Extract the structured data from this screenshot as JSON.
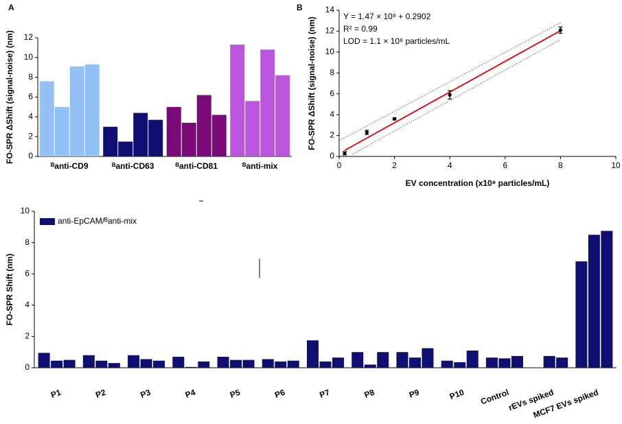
{
  "chart_data": [
    {
      "type": "bar",
      "panel_label": "A",
      "y_label": "FO-SPR ΔShift (signal-noise) (nm)",
      "categories": [
        "ᴮanti-CD9",
        "ᴮanti-CD63",
        "ᴮanti-CD81",
        "ᴮanti-mix"
      ],
      "values": [
        [
          7.6,
          5.0,
          9.1,
          9.3
        ],
        [
          3.0,
          1.5,
          4.4,
          3.7
        ],
        [
          5.0,
          3.4,
          6.2,
          4.2
        ],
        [
          11.3,
          5.6,
          10.8,
          8.2
        ]
      ],
      "colors": [
        "#93c0f5",
        "#0f0f72",
        "#7a0a78",
        "#bb55dd"
      ],
      "ylim": [
        0,
        12
      ],
      "yticks": [
        0,
        2,
        4,
        6,
        8,
        10,
        12
      ]
    },
    {
      "type": "scatter",
      "panel_label": "B",
      "x_label": "EV concentration (x10⁸ particles/mL)",
      "y_label": "FO-SPR ΔShift (signal-noise) (nm)",
      "annotations": [
        "Y = 1.47 × 10⁸ + 0.2902",
        "R² = 0.99",
        "LOD = 1.1 × 10⁸ particles/mL"
      ],
      "x": [
        0.2,
        1,
        2,
        4,
        8
      ],
      "y": [
        0.3,
        2.3,
        3.6,
        5.9,
        12.1
      ],
      "errors": [
        0.15,
        0.2,
        0.1,
        0.4,
        0.3
      ],
      "color": "#000000",
      "fit": {
        "x": [
          0.2,
          8
        ],
        "y": [
          0.58,
          12.05
        ],
        "color": "#e00000"
      },
      "band": [
        {
          "x": [
            0,
            8
          ],
          "y": [
            1.5,
            12.8
          ]
        },
        {
          "x": [
            0.47,
            8
          ],
          "y": [
            0.2,
            11.2
          ]
        }
      ],
      "xlim": [
        0,
        10
      ],
      "xticks": [
        0,
        2,
        4,
        6,
        8,
        10
      ],
      "ylim": [
        0,
        14
      ],
      "yticks": [
        0,
        2,
        4,
        6,
        8,
        10,
        12,
        14
      ]
    },
    {
      "type": "bar",
      "y_label": "FO-SPR Shift (nm)",
      "categories": [
        "P1",
        "P2",
        "P3",
        "P4",
        "P5",
        "P6",
        "P7",
        "P8",
        "P9",
        "P10",
        "Control",
        "rEVs spiked",
        "MCF7 EVs spiked"
      ],
      "series": [
        {
          "name": "anti-EpCAM/ᴮanti-mix",
          "color": "#0f0f72",
          "values": [
            [
              0.95,
              0.45,
              0.5
            ],
            [
              0.8,
              0.45,
              0.3
            ],
            [
              0.8,
              0.55,
              0.45
            ],
            [
              0.7,
              0.05,
              0.4
            ],
            [
              0.7,
              0.5,
              0.5
            ],
            [
              0.55,
              0.4,
              0.45
            ],
            [
              1.75,
              0.4,
              0.65
            ],
            [
              1.0,
              0.2,
              1.0
            ],
            [
              1.0,
              0.65,
              1.25
            ],
            [
              0.45,
              0.35,
              1.1
            ],
            [
              0.65,
              0.6,
              0.75
            ],
            [
              0.02,
              0.75,
              0.65
            ],
            [
              6.8,
              8.5,
              8.75
            ]
          ]
        }
      ],
      "ylim": [
        0,
        10
      ],
      "yticks": [
        0,
        2,
        4,
        6,
        8,
        10
      ]
    }
  ]
}
